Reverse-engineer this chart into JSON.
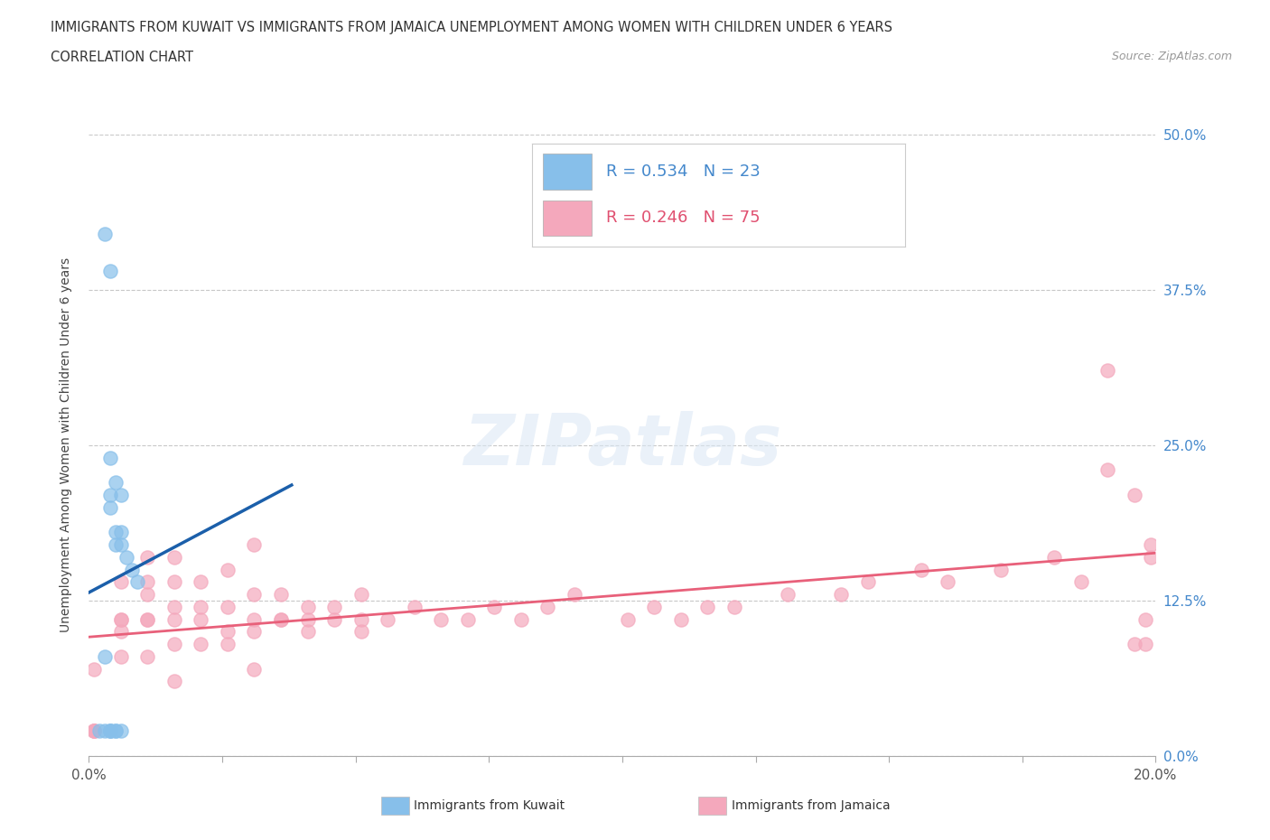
{
  "title_line1": "IMMIGRANTS FROM KUWAIT VS IMMIGRANTS FROM JAMAICA UNEMPLOYMENT AMONG WOMEN WITH CHILDREN UNDER 6 YEARS",
  "title_line2": "CORRELATION CHART",
  "source": "Source: ZipAtlas.com",
  "ylabel": "Unemployment Among Women with Children Under 6 years",
  "xlim": [
    0.0,
    0.2
  ],
  "ylim": [
    0.0,
    0.5
  ],
  "xticks": [
    0.0,
    0.025,
    0.05,
    0.075,
    0.1,
    0.125,
    0.15,
    0.175,
    0.2
  ],
  "xticklabels": [
    "0.0%",
    "",
    "",
    "",
    "",
    "",
    "",
    "",
    "20.0%"
  ],
  "ytick_positions": [
    0.0,
    0.125,
    0.25,
    0.375,
    0.5
  ],
  "ytick_labels": [
    "0.0%",
    "12.5%",
    "25.0%",
    "37.5%",
    "50.0%"
  ],
  "kuwait_color": "#87BFEA",
  "jamaica_color": "#F4A8BC",
  "kuwait_line_color": "#1B5FAA",
  "jamaica_line_color": "#E8607A",
  "kuwait_r": 0.534,
  "kuwait_n": 23,
  "jamaica_r": 0.246,
  "jamaica_n": 75,
  "watermark": "ZIPatlas",
  "kuwait_x": [
    0.002,
    0.003,
    0.003,
    0.004,
    0.004,
    0.004,
    0.004,
    0.004,
    0.004,
    0.005,
    0.005,
    0.005,
    0.005,
    0.006,
    0.006,
    0.006,
    0.006,
    0.007,
    0.008,
    0.009,
    0.003,
    0.004,
    0.005
  ],
  "kuwait_y": [
    0.02,
    0.02,
    0.08,
    0.02,
    0.02,
    0.02,
    0.2,
    0.21,
    0.24,
    0.02,
    0.02,
    0.17,
    0.18,
    0.02,
    0.17,
    0.18,
    0.21,
    0.16,
    0.15,
    0.14,
    0.42,
    0.39,
    0.22
  ],
  "jamaica_x": [
    0.001,
    0.001,
    0.001,
    0.001,
    0.001,
    0.006,
    0.006,
    0.006,
    0.006,
    0.006,
    0.011,
    0.011,
    0.011,
    0.011,
    0.011,
    0.011,
    0.016,
    0.016,
    0.016,
    0.016,
    0.016,
    0.016,
    0.021,
    0.021,
    0.021,
    0.021,
    0.026,
    0.026,
    0.026,
    0.026,
    0.031,
    0.031,
    0.031,
    0.031,
    0.031,
    0.036,
    0.036,
    0.036,
    0.041,
    0.041,
    0.041,
    0.046,
    0.046,
    0.051,
    0.051,
    0.051,
    0.056,
    0.061,
    0.066,
    0.071,
    0.076,
    0.081,
    0.086,
    0.091,
    0.101,
    0.106,
    0.111,
    0.116,
    0.121,
    0.131,
    0.141,
    0.146,
    0.156,
    0.161,
    0.171,
    0.181,
    0.186,
    0.191,
    0.191,
    0.196,
    0.196,
    0.198,
    0.198,
    0.199,
    0.199
  ],
  "jamaica_y": [
    0.02,
    0.02,
    0.02,
    0.02,
    0.07,
    0.08,
    0.1,
    0.11,
    0.11,
    0.14,
    0.08,
    0.11,
    0.11,
    0.13,
    0.14,
    0.16,
    0.06,
    0.09,
    0.11,
    0.12,
    0.14,
    0.16,
    0.09,
    0.11,
    0.12,
    0.14,
    0.09,
    0.1,
    0.12,
    0.15,
    0.07,
    0.1,
    0.11,
    0.13,
    0.17,
    0.11,
    0.11,
    0.13,
    0.1,
    0.11,
    0.12,
    0.11,
    0.12,
    0.1,
    0.11,
    0.13,
    0.11,
    0.12,
    0.11,
    0.11,
    0.12,
    0.11,
    0.12,
    0.13,
    0.11,
    0.12,
    0.11,
    0.12,
    0.12,
    0.13,
    0.13,
    0.14,
    0.15,
    0.14,
    0.15,
    0.16,
    0.14,
    0.31,
    0.23,
    0.09,
    0.21,
    0.09,
    0.11,
    0.16,
    0.17
  ]
}
